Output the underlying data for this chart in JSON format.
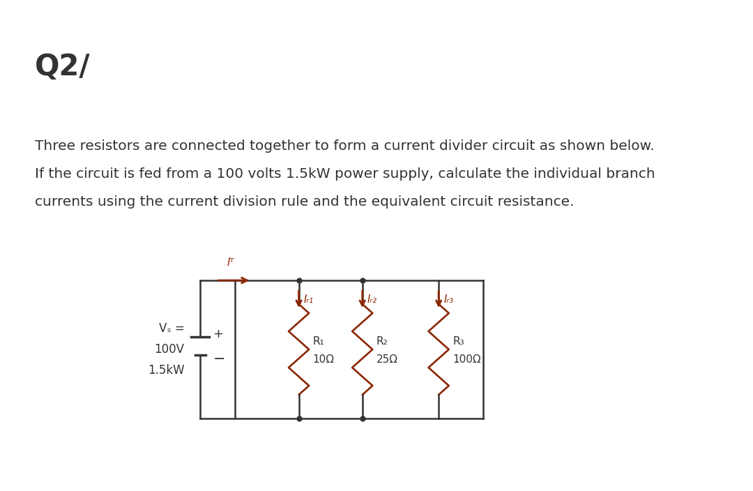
{
  "title": "Q2/",
  "line1": "Three resistors are connected together to form a current divider circuit as shown below.",
  "line2": "If the circuit is fed from a 100 volts 1.5kW power supply, calculate the individual branch",
  "line3": "currents using the current division rule and the equivalent circuit resistance.",
  "bg_color": "#ffffff",
  "text_color": "#333333",
  "circuit_color": "#333333",
  "arrow_color": "#8B2500",
  "resistor_color": "#8B2500",
  "vs_text_lines": [
    "Vₛ =",
    "100V",
    "1.5kW"
  ],
  "IT_label": "Iᵀ",
  "IR1_label": "Iᵣ₁",
  "IR2_label": "Iᵣ₂",
  "IR3_label": "Iᵣ₃",
  "R1_label_top": "R₁",
  "R1_label_bot": "10Ω",
  "R2_label_top": "R₂",
  "R2_label_bot": "25Ω",
  "R3_label_top": "R₃",
  "R3_label_bot": "100Ω"
}
